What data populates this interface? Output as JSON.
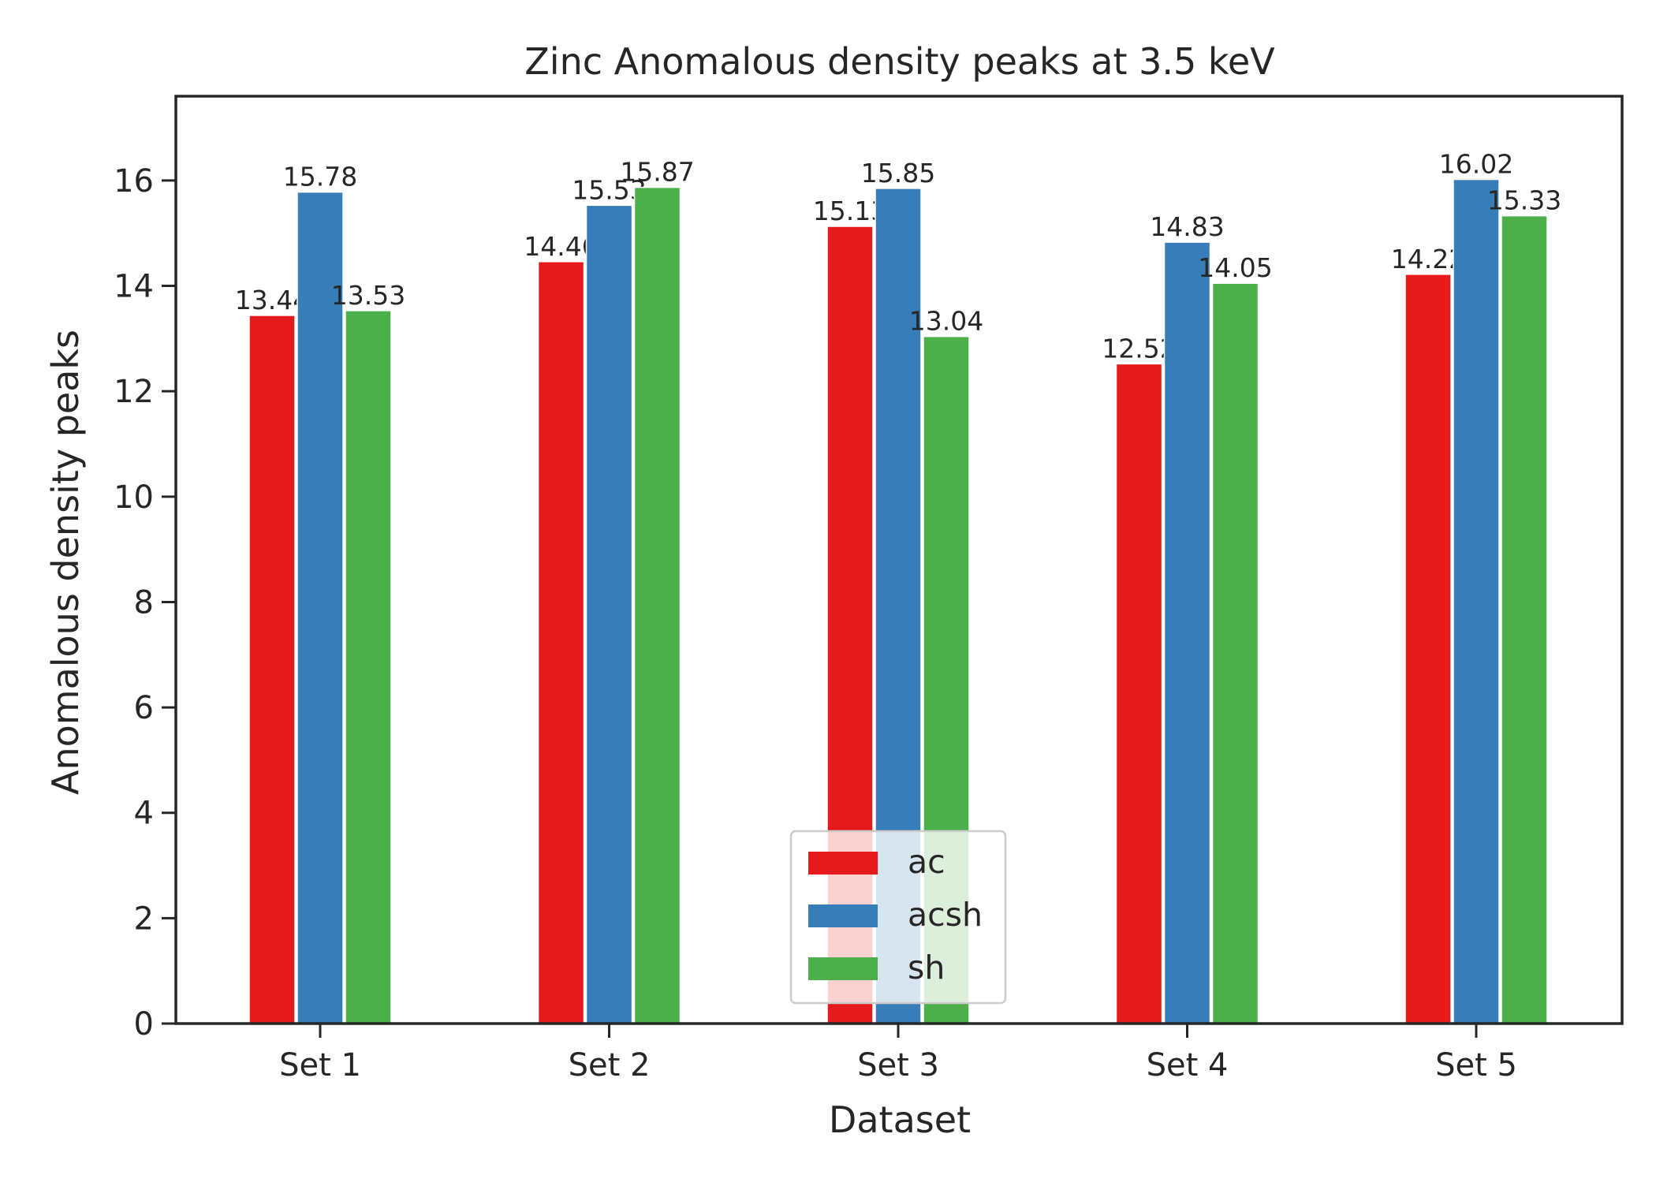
{
  "chart_data": {
    "type": "bar",
    "title": "Zinc Anomalous density peaks at 3.5 keV",
    "xlabel": "Dataset",
    "ylabel": "Anomalous density peaks",
    "categories": [
      "Set 1",
      "Set 2",
      "Set 3",
      "Set 4",
      "Set 5"
    ],
    "ylim": [
      0,
      17.6
    ],
    "yticks": [
      0,
      2,
      4,
      6,
      8,
      10,
      12,
      14,
      16
    ],
    "grid": false,
    "legend_position": "bottom-center",
    "series": [
      {
        "name": "ac",
        "color": "#e41a1c",
        "values": [
          13.44,
          14.46,
          15.13,
          12.52,
          14.22
        ],
        "labels": [
          "13.44",
          "14.46",
          "15.13",
          "12.52",
          "14.22"
        ]
      },
      {
        "name": "acsh",
        "color": "#377eb8",
        "values": [
          15.78,
          15.53,
          15.85,
          14.83,
          16.02
        ],
        "labels": [
          "15.78",
          "15.53",
          "15.85",
          "14.83",
          "16.02"
        ]
      },
      {
        "name": "sh",
        "color": "#4daf4a",
        "values": [
          13.53,
          15.87,
          13.04,
          14.05,
          15.33
        ],
        "labels": [
          "13.53",
          "15.87",
          "13.04",
          "14.05",
          "15.33"
        ]
      }
    ]
  }
}
